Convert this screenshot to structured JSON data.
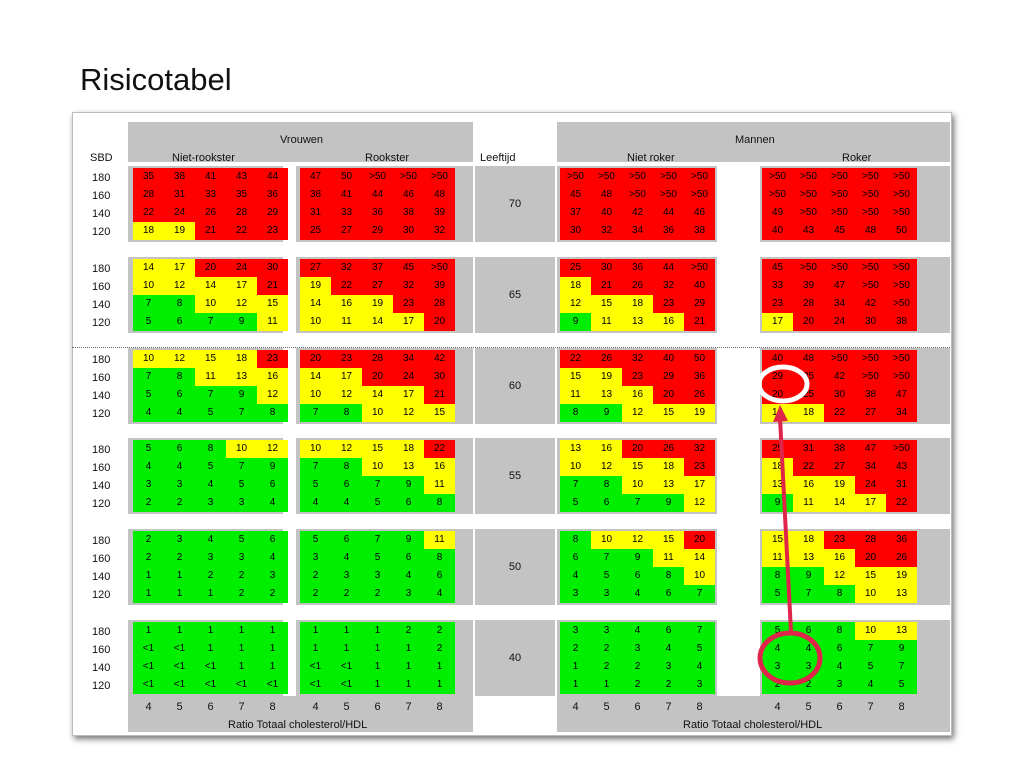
{
  "title": "Risicotabel",
  "header": {
    "women": "Vrouwen",
    "men": "Mannen",
    "non_smoker_women": "Niet-rookster",
    "smoker_women": "Rookster",
    "non_smoker_men": "Niet roker",
    "smoker_men": "Roker",
    "sbd": "SBD",
    "age": "Leeftijd"
  },
  "ratio_label": "Ratio Totaal cholesterol/HDL",
  "ratio_values": [
    "4",
    "5",
    "6",
    "7",
    "8"
  ],
  "sbd_values": [
    "180",
    "160",
    "140",
    "120"
  ],
  "colors": {
    "R": "#ff0000",
    "Y": "#ffff00",
    "G": "#00ee00",
    "band": "#c3c3c3"
  },
  "groups": [
    {
      "age": "70",
      "rows": [
        [
          "35|R",
          "38|R",
          "41|R",
          "43|R",
          "44|R",
          "47|R",
          "50|R",
          ">50|R",
          ">50|R",
          ">50|R",
          ">50|R",
          ">50|R",
          ">50|R",
          ">50|R",
          ">50|R",
          ">50|R",
          ">50|R",
          ">50|R",
          ">50|R",
          ">50|R"
        ],
        [
          "28|R",
          "31|R",
          "33|R",
          "35|R",
          "36|R",
          "38|R",
          "41|R",
          "44|R",
          "46|R",
          "48|R",
          "45|R",
          "48|R",
          ">50|R",
          ">50|R",
          ">50|R",
          ">50|R",
          ">50|R",
          ">50|R",
          ">50|R",
          ">50|R"
        ],
        [
          "22|R",
          "24|R",
          "26|R",
          "28|R",
          "29|R",
          "31|R",
          "33|R",
          "36|R",
          "38|R",
          "39|R",
          "37|R",
          "40|R",
          "42|R",
          "44|R",
          "46|R",
          "49|R",
          ">50|R",
          ">50|R",
          ">50|R",
          ">50|R"
        ],
        [
          "18|Y",
          "19|Y",
          "21|R",
          "22|R",
          "23|R",
          "25|R",
          "27|R",
          "29|R",
          "30|R",
          "32|R",
          "30|R",
          "32|R",
          "34|R",
          "36|R",
          "38|R",
          "40|R",
          "43|R",
          "45|R",
          "48|R",
          "50|R"
        ]
      ]
    },
    {
      "age": "65",
      "rows": [
        [
          "14|Y",
          "17|Y",
          "20|R",
          "24|R",
          "30|R",
          "27|R",
          "32|R",
          "37|R",
          "45|R",
          ">50|R",
          "25|R",
          "30|R",
          "36|R",
          "44|R",
          ">50|R",
          "45|R",
          ">50|R",
          ">50|R",
          ">50|R",
          ">50|R"
        ],
        [
          "10|Y",
          "12|Y",
          "14|Y",
          "17|Y",
          "21|R",
          "19|Y",
          "22|R",
          "27|R",
          "32|R",
          "39|R",
          "18|Y",
          "21|R",
          "26|R",
          "32|R",
          "40|R",
          "33|R",
          "39|R",
          "47|R",
          ">50|R",
          ">50|R"
        ],
        [
          "7|G",
          "8|G",
          "10|Y",
          "12|Y",
          "15|Y",
          "14|Y",
          "16|Y",
          "19|Y",
          "23|R",
          "28|R",
          "12|Y",
          "15|Y",
          "18|Y",
          "23|R",
          "29|R",
          "23|R",
          "28|R",
          "34|R",
          "42|R",
          ">50|R"
        ],
        [
          "5|G",
          "6|G",
          "7|G",
          "9|G",
          "11|Y",
          "10|Y",
          "11|Y",
          "14|Y",
          "17|Y",
          "20|R",
          "9|G",
          "11|Y",
          "13|Y",
          "16|Y",
          "21|R",
          "17|Y",
          "20|R",
          "24|R",
          "30|R",
          "38|R"
        ]
      ]
    },
    {
      "age": "60",
      "rows": [
        [
          "10|Y",
          "12|Y",
          "15|Y",
          "18|Y",
          "23|R",
          "20|R",
          "23|R",
          "28|R",
          "34|R",
          "42|R",
          "22|R",
          "26|R",
          "32|R",
          "40|R",
          "50|R",
          "40|R",
          "48|R",
          ">50|R",
          ">50|R",
          ">50|R"
        ],
        [
          "7|G",
          "8|G",
          "11|Y",
          "13|Y",
          "16|Y",
          "14|Y",
          "17|Y",
          "20|R",
          "24|R",
          "30|R",
          "15|Y",
          "19|Y",
          "23|R",
          "29|R",
          "36|R",
          "29|R",
          "35|R",
          "42|R",
          ">50|R",
          ">50|R"
        ],
        [
          "5|G",
          "6|G",
          "7|G",
          "9|G",
          "12|Y",
          "10|Y",
          "12|Y",
          "14|Y",
          "17|Y",
          "21|R",
          "11|Y",
          "13|Y",
          "16|Y",
          "20|R",
          "26|R",
          "20|R",
          "25|R",
          "30|R",
          "38|R",
          "47|R"
        ],
        [
          "4|G",
          "4|G",
          "5|G",
          "7|G",
          "8|G",
          "7|G",
          "8|G",
          "10|Y",
          "12|Y",
          "15|Y",
          "8|G",
          "9|G",
          "12|Y",
          "15|Y",
          "19|Y",
          "14|Y",
          "18|Y",
          "22|R",
          "27|R",
          "34|R"
        ]
      ]
    },
    {
      "age": "55",
      "rows": [
        [
          "5|G",
          "6|G",
          "8|G",
          "10|Y",
          "12|Y",
          "10|Y",
          "12|Y",
          "15|Y",
          "18|Y",
          "22|R",
          "13|Y",
          "16|Y",
          "20|R",
          "26|R",
          "32|R",
          "25|R",
          "31|R",
          "38|R",
          "47|R",
          ">50|R"
        ],
        [
          "4|G",
          "4|G",
          "5|G",
          "7|G",
          "9|G",
          "7|G",
          "8|G",
          "10|Y",
          "13|Y",
          "16|Y",
          "10|Y",
          "12|Y",
          "15|Y",
          "18|Y",
          "23|R",
          "18|Y",
          "22|R",
          "27|R",
          "34|R",
          "43|R"
        ],
        [
          "3|G",
          "3|G",
          "4|G",
          "5|G",
          "6|G",
          "5|G",
          "6|G",
          "7|G",
          "9|G",
          "11|Y",
          "7|G",
          "8|G",
          "10|Y",
          "13|Y",
          "17|Y",
          "13|Y",
          "16|Y",
          "19|Y",
          "24|R",
          "31|R"
        ],
        [
          "2|G",
          "2|G",
          "3|G",
          "3|G",
          "4|G",
          "4|G",
          "4|G",
          "5|G",
          "6|G",
          "8|G",
          "5|G",
          "6|G",
          "7|G",
          "9|G",
          "12|Y",
          "9|G",
          "11|Y",
          "14|Y",
          "17|Y",
          "22|R"
        ]
      ]
    },
    {
      "age": "50",
      "rows": [
        [
          "2|G",
          "3|G",
          "4|G",
          "5|G",
          "6|G",
          "5|G",
          "6|G",
          "7|G",
          "9|G",
          "11|Y",
          "8|G",
          "10|Y",
          "12|Y",
          "15|Y",
          "20|R",
          "15|Y",
          "18|Y",
          "23|R",
          "28|R",
          "36|R"
        ],
        [
          "2|G",
          "2|G",
          "3|G",
          "3|G",
          "4|G",
          "3|G",
          "4|G",
          "5|G",
          "6|G",
          "8|G",
          "6|G",
          "7|G",
          "9|G",
          "11|Y",
          "14|Y",
          "11|Y",
          "13|Y",
          "16|Y",
          "20|R",
          "26|R"
        ],
        [
          "1|G",
          "1|G",
          "2|G",
          "2|G",
          "3|G",
          "2|G",
          "3|G",
          "3|G",
          "4|G",
          "6|G",
          "4|G",
          "5|G",
          "6|G",
          "8|G",
          "10|Y",
          "8|G",
          "9|G",
          "12|Y",
          "15|Y",
          "19|Y"
        ],
        [
          "1|G",
          "1|G",
          "1|G",
          "2|G",
          "2|G",
          "2|G",
          "2|G",
          "2|G",
          "3|G",
          "4|G",
          "3|G",
          "3|G",
          "4|G",
          "6|G",
          "7|G",
          "5|G",
          "7|G",
          "8|G",
          "10|Y",
          "13|Y"
        ]
      ]
    },
    {
      "age": "40",
      "rows": [
        [
          "1|G",
          "1|G",
          "1|G",
          "1|G",
          "1|G",
          "1|G",
          "1|G",
          "1|G",
          "2|G",
          "2|G",
          "3|G",
          "3|G",
          "4|G",
          "6|G",
          "7|G",
          "5|G",
          "6|G",
          "8|G",
          "10|Y",
          "13|Y"
        ],
        [
          "<1|G",
          "<1|G",
          "1|G",
          "1|G",
          "1|G",
          "1|G",
          "1|G",
          "1|G",
          "1|G",
          "2|G",
          "2|G",
          "2|G",
          "3|G",
          "4|G",
          "5|G",
          "4|G",
          "4|G",
          "6|G",
          "7|G",
          "9|G"
        ],
        [
          "<1|G",
          "<1|G",
          "<1|G",
          "1|G",
          "1|G",
          "<1|G",
          "<1|G",
          "1|G",
          "1|G",
          "1|G",
          "1|G",
          "2|G",
          "2|G",
          "3|G",
          "4|G",
          "3|G",
          "3|G",
          "4|G",
          "5|G",
          "7|G"
        ],
        [
          "<1|G",
          "<1|G",
          "<1|G",
          "<1|G",
          "<1|G",
          "<1|G",
          "<1|G",
          "1|G",
          "1|G",
          "1|G",
          "1|G",
          "1|G",
          "2|G",
          "2|G",
          "3|G",
          "2|G",
          "2|G",
          "3|G",
          "4|G",
          "5|G"
        ]
      ]
    }
  ]
}
